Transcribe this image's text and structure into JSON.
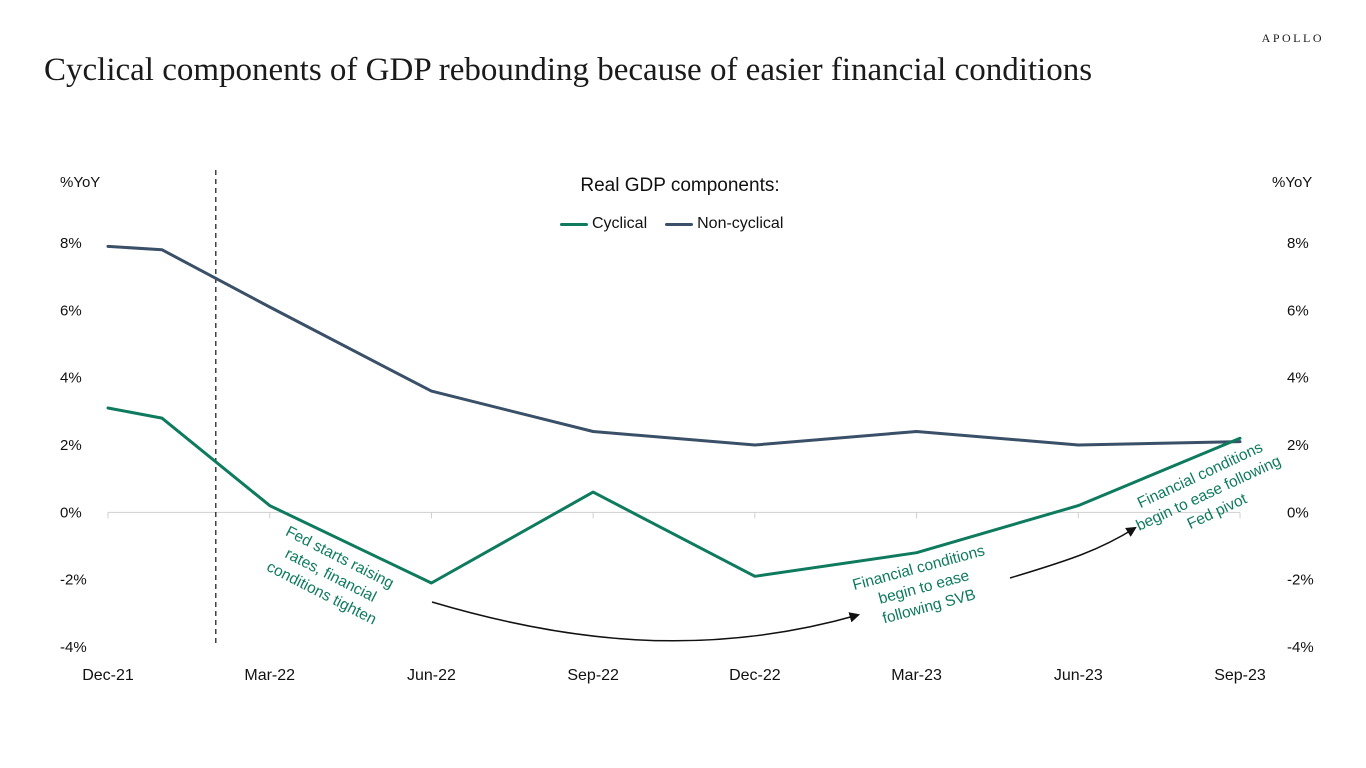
{
  "brand": "APOLLO",
  "title": "Cyclical components of GDP rebounding because of easier financial conditions",
  "chart_data": {
    "type": "line",
    "legend_title": "Real GDP components:",
    "legend_position": "top-center",
    "ylabel_left": "%YoY",
    "ylabel_right": "%YoY",
    "ylim": [
      -4,
      8
    ],
    "yticks": [
      8,
      6,
      4,
      2,
      0,
      -2,
      -4
    ],
    "ytick_labels": [
      "8%",
      "6%",
      "4%",
      "2%",
      "0%",
      "-2%",
      "-4%"
    ],
    "x_tick_labels": [
      "Dec-21",
      "Mar-22",
      "Jun-22",
      "Sep-22",
      "Dec-22",
      "Mar-23",
      "Jun-23",
      "Sep-23"
    ],
    "series": [
      {
        "name": "Non-cyclical",
        "color": "#3a5068",
        "x": [
          "Dec-21",
          "Jan-22",
          "Mar-22",
          "Jun-22",
          "Sep-22",
          "Dec-22",
          "Mar-23",
          "Jun-23",
          "Sep-23"
        ],
        "values": [
          7.9,
          7.8,
          6.1,
          3.6,
          2.4,
          2.0,
          2.4,
          2.0,
          2.1
        ]
      },
      {
        "name": "Cyclical",
        "color": "#0e7a5e",
        "x": [
          "Dec-21",
          "Jan-22",
          "Mar-22",
          "Jun-22",
          "Sep-22",
          "Dec-22",
          "Mar-23",
          "Jun-23",
          "Sep-23"
        ],
        "values": [
          3.1,
          2.8,
          0.2,
          -2.1,
          0.6,
          -1.9,
          -1.2,
          0.2,
          2.2
        ]
      }
    ],
    "vertical_marker": {
      "x": "Feb-22",
      "style": "dashed"
    },
    "annotations": [
      {
        "lines": [
          "Fed starts raising",
          "rates, financial",
          "conditions tighten"
        ]
      },
      {
        "lines": [
          "Financial conditions",
          "begin to ease",
          "following SVB"
        ]
      },
      {
        "lines": [
          "Financial conditions",
          "begin to ease following",
          "Fed pivot"
        ]
      }
    ],
    "grid": false
  }
}
